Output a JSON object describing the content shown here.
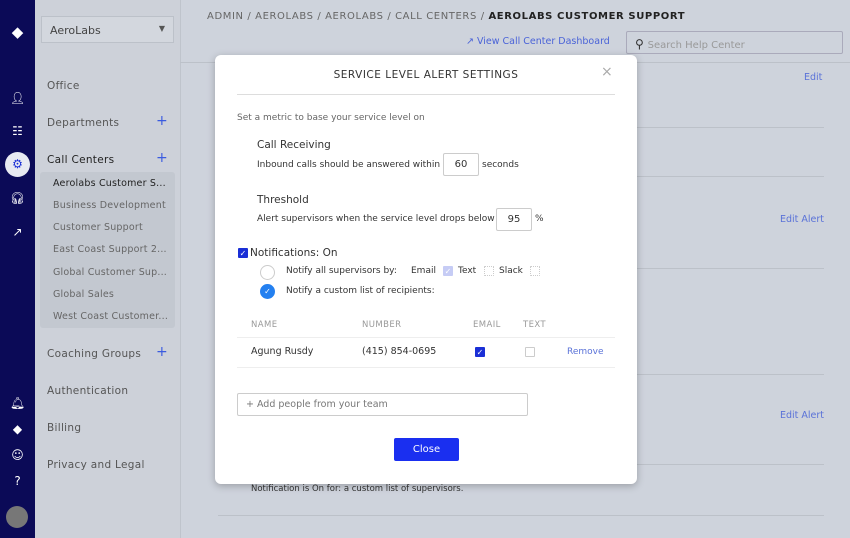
{
  "rail": {
    "icons": [
      "logo-icon",
      "user-icon",
      "office-icon",
      "gear-icon",
      "headset-icon",
      "trend-icon",
      "bell-icon",
      "logo-small-icon",
      "smiley-icon",
      "help-icon",
      "avatar"
    ]
  },
  "sidebar": {
    "company": "AeroLabs",
    "items": [
      {
        "label": "Office"
      },
      {
        "label": "Departments"
      },
      {
        "label": "Call Centers"
      },
      {
        "label": "Coaching Groups"
      },
      {
        "label": "Authentication"
      },
      {
        "label": "Billing"
      },
      {
        "label": "Privacy and Legal"
      }
    ],
    "call_centers": [
      "Aerolabs Customer S...",
      "Business Development",
      "Customer Support",
      "East Coast Support 2...",
      "Global Customer Sup...",
      "Global Sales",
      "West Coast Customer..."
    ]
  },
  "header": {
    "crumbs": "ADMIN / AEROLABS / AEROLABS / CALL CENTERS / ",
    "current": "AEROLABS CUSTOMER SUPPORT",
    "dashboard_link": "View Call Center Dashboard",
    "search_placeholder": "Search Help Center"
  },
  "background": {
    "edit": "Edit",
    "edit_alert": "Edit Alert",
    "notification_text": "Notification is On for: a custom list of supervisors."
  },
  "modal": {
    "title": "SERVICE LEVEL ALERT SETTINGS",
    "intro": "Set a metric to base your service level on",
    "call_receiving": {
      "heading": "Call Receiving",
      "prefix": "Inbound calls should be answered within",
      "value": "60",
      "suffix": "seconds"
    },
    "threshold": {
      "heading": "Threshold",
      "prefix": "Alert supervisors when the service level drops below",
      "value": "95",
      "suffix": "%"
    },
    "notifications": {
      "label": "Notifications: On",
      "checked": true,
      "all_label": "Notify all supervisors by:",
      "email": "Email",
      "text": "Text",
      "slack": "Slack",
      "custom_label": "Notify a custom list of recipients:",
      "selected": "custom"
    },
    "table": {
      "headers": [
        "NAME",
        "NUMBER",
        "EMAIL",
        "TEXT"
      ],
      "rows": [
        {
          "name": "Agung Rusdy",
          "number": "(415) 854-0695",
          "email": true,
          "text": false,
          "action": "Remove"
        }
      ]
    },
    "add_placeholder": "+ Add people from your team",
    "close": "Close"
  },
  "colors": {
    "rail": "#0b0a57",
    "accent": "#1a2fd6",
    "link": "#4a63d8"
  }
}
